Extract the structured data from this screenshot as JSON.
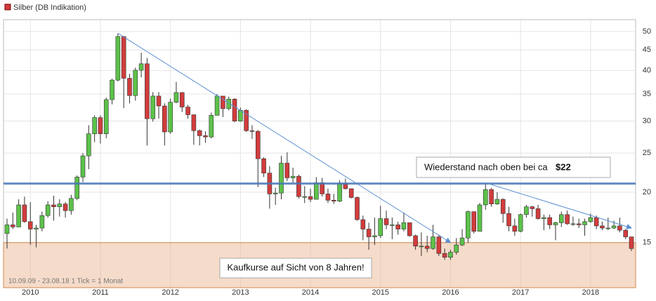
{
  "chart_data": {
    "type": "candlestick",
    "legend": "Silber (DB Indikation)",
    "footnote": "10.09.09 - 23.08.18    1 Tick = 1 Monat",
    "color_up": "#5cc24a",
    "color_down": "#d23c3c",
    "x": [
      "2009-09",
      "2009-10",
      "2009-11",
      "2009-12",
      "2010-01",
      "2010-02",
      "2010-03",
      "2010-04",
      "2010-05",
      "2010-06",
      "2010-07",
      "2010-08",
      "2010-09",
      "2010-10",
      "2010-11",
      "2010-12",
      "2011-01",
      "2011-02",
      "2011-03",
      "2011-04",
      "2011-05",
      "2011-06",
      "2011-07",
      "2011-08",
      "2011-09",
      "2011-10",
      "2011-11",
      "2011-12",
      "2012-01",
      "2012-02",
      "2012-03",
      "2012-04",
      "2012-05",
      "2012-06",
      "2012-07",
      "2012-08",
      "2012-09",
      "2012-10",
      "2012-11",
      "2012-12",
      "2013-01",
      "2013-02",
      "2013-03",
      "2013-04",
      "2013-05",
      "2013-06",
      "2013-07",
      "2013-08",
      "2013-09",
      "2013-10",
      "2013-11",
      "2013-12",
      "2014-01",
      "2014-02",
      "2014-03",
      "2014-04",
      "2014-05",
      "2014-06",
      "2014-07",
      "2014-08",
      "2014-09",
      "2014-10",
      "2014-11",
      "2014-12",
      "2015-01",
      "2015-02",
      "2015-03",
      "2015-04",
      "2015-05",
      "2015-06",
      "2015-07",
      "2015-08",
      "2015-09",
      "2015-10",
      "2015-11",
      "2015-12",
      "2016-01",
      "2016-02",
      "2016-03",
      "2016-04",
      "2016-05",
      "2016-06",
      "2016-07",
      "2016-08",
      "2016-09",
      "2016-10",
      "2016-11",
      "2016-12",
      "2017-01",
      "2017-02",
      "2017-03",
      "2017-04",
      "2017-05",
      "2017-06",
      "2017-07",
      "2017-08",
      "2017-09",
      "2017-10",
      "2017-11",
      "2017-12",
      "2018-01",
      "2018-02",
      "2018-03",
      "2018-04",
      "2018-05",
      "2018-06",
      "2018-07",
      "2018-08"
    ],
    "open": [
      15.8,
      16.6,
      16.4,
      18.6,
      16.9,
      16.2,
      16.3,
      17.5,
      18.6,
      18.4,
      18.7,
      18.0,
      19.3,
      21.8,
      24.6,
      27.9,
      30.6,
      27.9,
      33.9,
      37.9,
      48.6,
      38.3,
      34.7,
      40.1,
      41.6,
      30.4,
      34.6,
      32.7,
      28.2,
      33.4,
      35.3,
      32.5,
      31.1,
      28.4,
      27.6,
      27.4,
      31.0,
      34.6,
      32.2,
      34.0,
      30.0,
      31.9,
      28.4,
      28.3,
      24.2,
      22.3,
      19.8,
      19.9,
      23.6,
      21.7,
      21.9,
      19.5,
      19.5,
      19.2,
      21.1,
      19.8,
      19.1,
      19.0,
      21.0,
      20.4,
      19.4,
      17.1,
      16.2,
      15.5,
      15.6,
      17.2,
      16.6,
      16.6,
      16.2,
      16.8,
      15.6,
      14.7,
      14.7,
      14.5,
      15.5,
      14.1,
      13.8,
      14.2,
      14.8,
      15.4,
      17.9,
      16.0,
      18.6,
      20.3,
      18.7,
      19.2,
      17.7,
      16.5,
      16.0,
      17.6,
      18.4,
      18.2,
      17.2,
      17.3,
      16.6,
      16.8,
      17.6,
      16.7,
      16.7,
      16.6,
      16.9,
      17.3,
      16.5,
      16.3,
      16.3,
      16.5,
      16.1,
      15.5
    ],
    "high": [
      17.2,
      17.8,
      19.2,
      19.5,
      18.9,
      16.6,
      17.9,
      19.0,
      19.6,
      19.2,
      18.9,
      19.7,
      22.0,
      25.0,
      29.3,
      31.0,
      31.0,
      34.3,
      38.2,
      49.5,
      48.7,
      39.3,
      40.7,
      44.3,
      43.0,
      35.4,
      35.4,
      33.2,
      34.1,
      37.5,
      35.4,
      32.9,
      31.1,
      28.6,
      28.3,
      31.5,
      35.0,
      34.3,
      34.5,
      34.2,
      32.4,
      32.1,
      29.3,
      28.5,
      24.4,
      23.2,
      20.5,
      24.6,
      25.1,
      23.0,
      22.1,
      20.7,
      20.4,
      21.8,
      21.7,
      20.4,
      19.8,
      21.4,
      21.6,
      20.4,
      19.5,
      17.5,
      16.8,
      17.3,
      18.5,
      18.0,
      17.3,
      16.9,
      17.8,
      16.8,
      15.7,
      15.9,
      15.6,
      16.6,
      15.7,
      14.5,
      14.4,
      15.4,
      16.2,
      18.0,
      17.8,
      18.8,
      21.1,
      20.5,
      20.0,
      19.3,
      18.4,
      17.2,
      17.7,
      18.6,
      18.5,
      18.6,
      17.6,
      17.6,
      16.9,
      17.9,
      18.0,
      17.4,
      17.2,
      17.2,
      17.7,
      17.5,
      16.9,
      17.3,
      17.0,
      17.3,
      16.2,
      15.5
    ],
    "low": [
      14.5,
      16.2,
      16.4,
      16.8,
      14.8,
      14.6,
      16.0,
      17.3,
      17.0,
      17.4,
      17.3,
      17.6,
      19.1,
      21.2,
      22.8,
      26.6,
      26.4,
      27.2,
      33.0,
      37.6,
      32.3,
      33.2,
      33.7,
      38.5,
      26.1,
      29.9,
      30.4,
      26.1,
      27.9,
      33.2,
      31.6,
      30.4,
      26.2,
      26.1,
      26.5,
      27.2,
      31.0,
      30.7,
      31.9,
      29.8,
      29.9,
      28.2,
      27.1,
      20.6,
      21.8,
      18.2,
      18.6,
      19.2,
      21.3,
      21.1,
      19.3,
      18.8,
      18.9,
      19.2,
      19.5,
      18.8,
      18.7,
      18.9,
      20.3,
      19.3,
      17.0,
      15.2,
      14.4,
      14.8,
      15.4,
      16.2,
      15.3,
      15.7,
      16.0,
      15.5,
      14.4,
      13.9,
      14.2,
      14.4,
      13.9,
      13.6,
      13.6,
      14.0,
      14.7,
      15.0,
      15.8,
      16.0,
      18.1,
      18.4,
      18.6,
      16.8,
      16.0,
      15.6,
      15.9,
      17.3,
      17.4,
      17.1,
      16.1,
      16.2,
      15.2,
      16.4,
      16.6,
      16.5,
      16.3,
      15.6,
      16.8,
      16.2,
      16.1,
      16.1,
      16.2,
      15.9,
      15.3,
      14.3
    ],
    "close": [
      16.6,
      16.4,
      18.6,
      16.9,
      16.2,
      16.3,
      17.5,
      18.6,
      18.4,
      18.7,
      18.0,
      19.3,
      21.8,
      24.6,
      27.9,
      30.6,
      27.9,
      33.9,
      37.9,
      48.6,
      38.3,
      34.7,
      40.1,
      41.6,
      30.4,
      34.6,
      32.7,
      28.2,
      33.4,
      35.3,
      32.5,
      31.1,
      28.4,
      27.6,
      27.4,
      31.0,
      34.6,
      32.2,
      34.0,
      30.0,
      31.9,
      28.4,
      28.3,
      24.2,
      22.3,
      19.8,
      19.9,
      23.6,
      21.7,
      21.9,
      19.5,
      19.5,
      19.2,
      21.1,
      19.8,
      19.1,
      19.0,
      21.0,
      20.4,
      19.4,
      17.1,
      16.2,
      15.5,
      15.6,
      17.2,
      16.6,
      16.6,
      16.2,
      16.8,
      15.6,
      14.7,
      14.7,
      14.5,
      15.5,
      14.1,
      13.8,
      14.2,
      14.8,
      15.4,
      17.9,
      16.0,
      18.6,
      20.3,
      18.7,
      19.2,
      17.7,
      16.5,
      16.0,
      17.6,
      18.4,
      18.2,
      17.2,
      17.3,
      16.6,
      16.8,
      17.6,
      16.7,
      16.7,
      16.6,
      16.9,
      17.3,
      16.5,
      16.3,
      16.3,
      16.5,
      16.1,
      15.5,
      14.5
    ],
    "xticks": [
      {
        "value": "2010-01",
        "label": "2010"
      },
      {
        "value": "2011-01",
        "label": "2011"
      },
      {
        "value": "2012-01",
        "label": "2012"
      },
      {
        "value": "2013-01",
        "label": "2013"
      },
      {
        "value": "2014-01",
        "label": "2014"
      },
      {
        "value": "2015-01",
        "label": "2015"
      },
      {
        "value": "2016-01",
        "label": "2016"
      },
      {
        "value": "2017-01",
        "label": "2017"
      },
      {
        "value": "2018-01",
        "label": "2018"
      }
    ],
    "ylim": [
      11.6,
      53.5
    ],
    "yticks": [
      15,
      20,
      25,
      30,
      35,
      40,
      45,
      50
    ],
    "log_scale": true,
    "grid": true,
    "resistance": {
      "value": 21,
      "color": "#4a78b8",
      "text": "Wiederstand nach oben bei ca",
      "text_bold": "$22"
    },
    "buy_zone": {
      "top": 15,
      "text": "Kaufkurse auf Sicht von 8 Jahren!"
    },
    "trendlines": [
      {
        "x": [
          "2011-04",
          "2016-01"
        ],
        "y": [
          49.5,
          15.0
        ]
      },
      {
        "x": [
          "2016-07",
          "2018-08"
        ],
        "y": [
          21.1,
          16.3
        ]
      }
    ],
    "trend_color": "#5b8fd0"
  }
}
